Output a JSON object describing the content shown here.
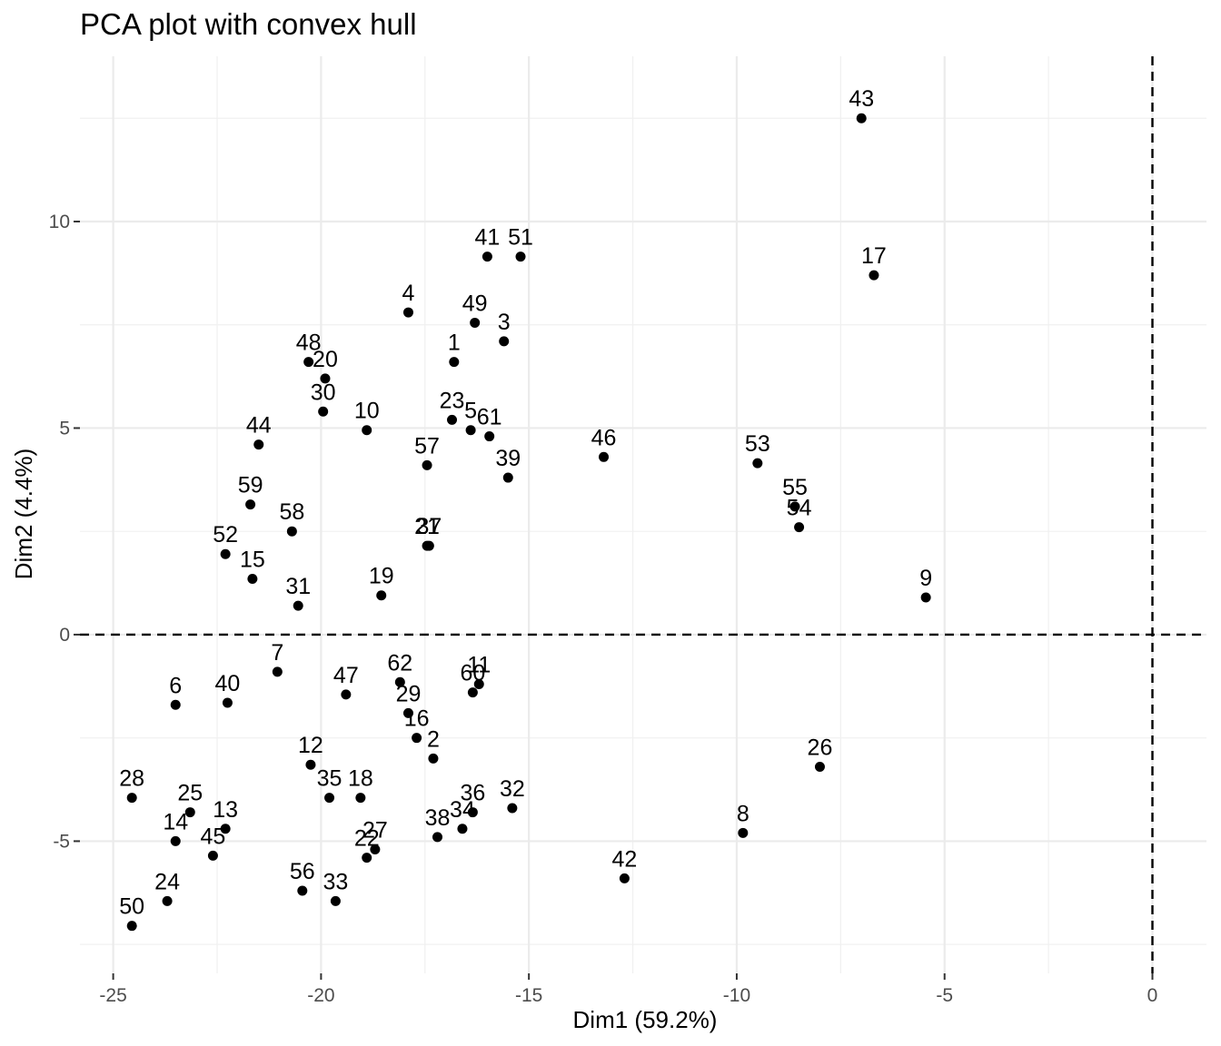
{
  "chart_data": {
    "type": "scatter",
    "title": "PCA plot with convex hull",
    "xlabel": "Dim1 (59.2%)",
    "ylabel": "Dim2 (4.4%)",
    "xlim": [
      -25.8,
      1.3
    ],
    "ylim": [
      -8.2,
      14.0
    ],
    "xticks": [
      -25,
      -20,
      -15,
      -10,
      -5,
      0
    ],
    "xtick_labels": [
      "-25",
      "-20",
      "-15",
      "-10",
      "-5",
      "0"
    ],
    "yticks": [
      -5,
      0,
      5,
      10
    ],
    "ytick_labels": [
      "-5",
      "0",
      "5",
      "10"
    ],
    "reference_lines": {
      "x": 0,
      "y": 0,
      "style": "dashed"
    },
    "grid": true,
    "legend": "none",
    "point_color": "#000000",
    "points": [
      {
        "label": "43",
        "x": -7.0,
        "y": 12.5
      },
      {
        "label": "41",
        "x": -16.0,
        "y": 9.15
      },
      {
        "label": "51",
        "x": -15.2,
        "y": 9.15
      },
      {
        "label": "17",
        "x": -6.7,
        "y": 8.7
      },
      {
        "label": "4",
        "x": -17.9,
        "y": 7.8
      },
      {
        "label": "49",
        "x": -16.3,
        "y": 7.55
      },
      {
        "label": "3",
        "x": -15.6,
        "y": 7.1
      },
      {
        "label": "1",
        "x": -16.8,
        "y": 6.6
      },
      {
        "label": "48",
        "x": -20.3,
        "y": 6.6
      },
      {
        "label": "20",
        "x": -19.9,
        "y": 6.2
      },
      {
        "label": "30",
        "x": -19.95,
        "y": 5.4
      },
      {
        "label": "10",
        "x": -18.9,
        "y": 4.95
      },
      {
        "label": "23",
        "x": -16.85,
        "y": 5.2
      },
      {
        "label": "5",
        "x": -16.4,
        "y": 4.95
      },
      {
        "label": "61",
        "x": -15.95,
        "y": 4.8
      },
      {
        "label": "44",
        "x": -21.5,
        "y": 4.6
      },
      {
        "label": "46",
        "x": -13.2,
        "y": 4.3
      },
      {
        "label": "53",
        "x": -9.5,
        "y": 4.15
      },
      {
        "label": "57",
        "x": -17.45,
        "y": 4.1
      },
      {
        "label": "39",
        "x": -15.5,
        "y": 3.8
      },
      {
        "label": "59",
        "x": -21.7,
        "y": 3.15
      },
      {
        "label": "55",
        "x": -8.6,
        "y": 3.1
      },
      {
        "label": "54",
        "x": -8.5,
        "y": 2.6
      },
      {
        "label": "58",
        "x": -20.7,
        "y": 2.5
      },
      {
        "label": "21",
        "x": -17.45,
        "y": 2.15
      },
      {
        "label": "37",
        "x": -17.4,
        "y": 2.15
      },
      {
        "label": "52",
        "x": -22.3,
        "y": 1.95
      },
      {
        "label": "15",
        "x": -21.65,
        "y": 1.35
      },
      {
        "label": "19",
        "x": -18.55,
        "y": 0.95
      },
      {
        "label": "9",
        "x": -5.45,
        "y": 0.9
      },
      {
        "label": "31",
        "x": -20.55,
        "y": 0.7
      },
      {
        "label": "7",
        "x": -21.05,
        "y": -0.9
      },
      {
        "label": "62",
        "x": -18.1,
        "y": -1.15
      },
      {
        "label": "11",
        "x": -16.2,
        "y": -1.2
      },
      {
        "label": "60",
        "x": -16.35,
        "y": -1.4
      },
      {
        "label": "47",
        "x": -19.4,
        "y": -1.45
      },
      {
        "label": "6",
        "x": -23.5,
        "y": -1.7
      },
      {
        "label": "40",
        "x": -22.25,
        "y": -1.65
      },
      {
        "label": "29",
        "x": -17.9,
        "y": -1.9
      },
      {
        "label": "16",
        "x": -17.7,
        "y": -2.5
      },
      {
        "label": "2",
        "x": -17.3,
        "y": -3.0
      },
      {
        "label": "12",
        "x": -20.25,
        "y": -3.15
      },
      {
        "label": "26",
        "x": -8.0,
        "y": -3.2
      },
      {
        "label": "35",
        "x": -19.8,
        "y": -3.95
      },
      {
        "label": "18",
        "x": -19.05,
        "y": -3.95
      },
      {
        "label": "28",
        "x": -24.55,
        "y": -3.95
      },
      {
        "label": "32",
        "x": -15.4,
        "y": -4.2
      },
      {
        "label": "36",
        "x": -16.35,
        "y": -4.3
      },
      {
        "label": "25",
        "x": -23.15,
        "y": -4.3
      },
      {
        "label": "34",
        "x": -16.6,
        "y": -4.7
      },
      {
        "label": "13",
        "x": -22.3,
        "y": -4.7
      },
      {
        "label": "8",
        "x": -9.85,
        "y": -4.8
      },
      {
        "label": "38",
        "x": -17.2,
        "y": -4.9
      },
      {
        "label": "14",
        "x": -23.5,
        "y": -5.0
      },
      {
        "label": "27",
        "x": -18.7,
        "y": -5.2
      },
      {
        "label": "45",
        "x": -22.6,
        "y": -5.35
      },
      {
        "label": "22",
        "x": -18.9,
        "y": -5.4
      },
      {
        "label": "42",
        "x": -12.7,
        "y": -5.9
      },
      {
        "label": "56",
        "x": -20.45,
        "y": -6.2
      },
      {
        "label": "24",
        "x": -23.7,
        "y": -6.45
      },
      {
        "label": "33",
        "x": -19.65,
        "y": -6.45
      },
      {
        "label": "50",
        "x": -24.55,
        "y": -7.05
      }
    ]
  }
}
